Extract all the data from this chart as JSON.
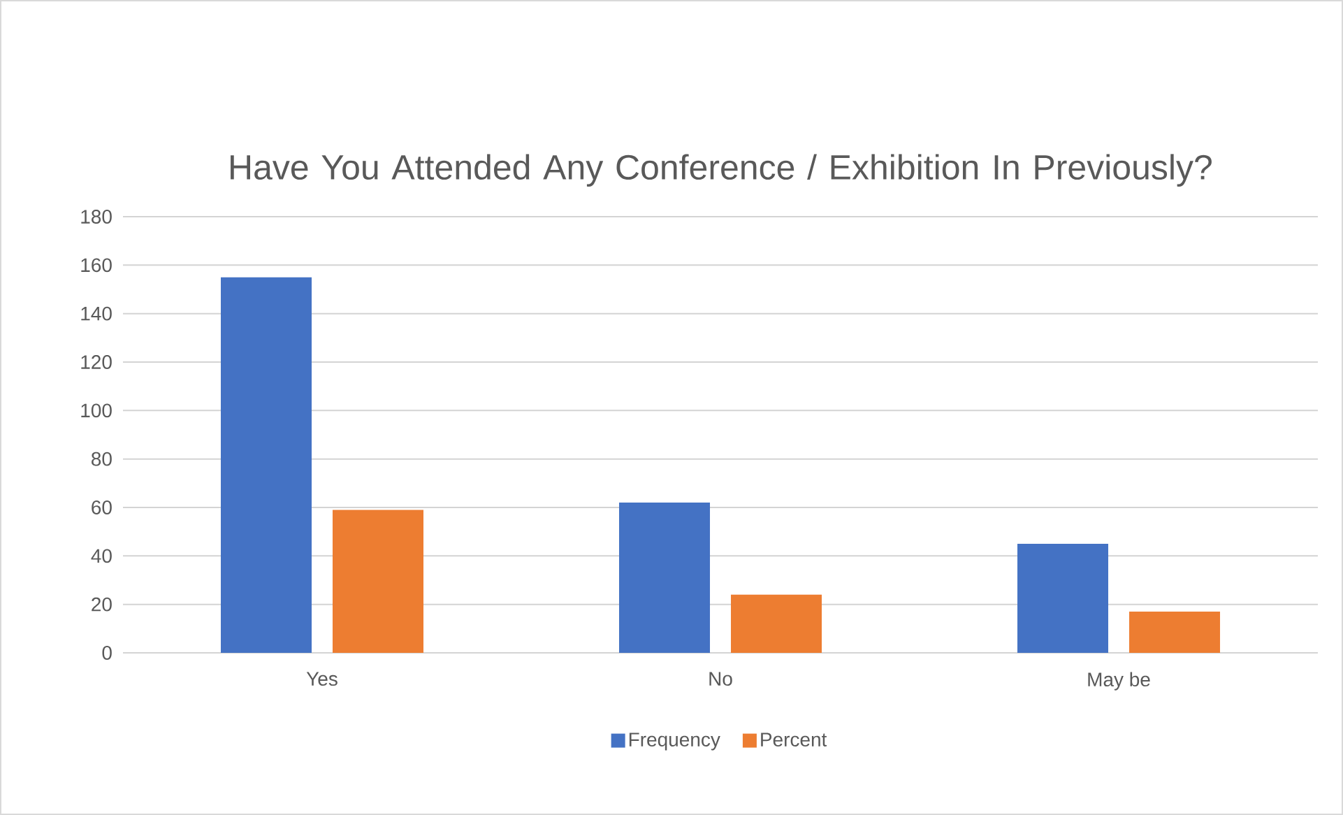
{
  "chart_data": {
    "type": "bar",
    "title": "Have You Attended Any Conference / Exhibition In Previously?",
    "categories": [
      "Yes",
      "No",
      "May be"
    ],
    "series": [
      {
        "name": "Frequency",
        "color": "#4472c4",
        "values": [
          155,
          62,
          45
        ]
      },
      {
        "name": "Percent",
        "color": "#ed7d31",
        "values": [
          59,
          24,
          17
        ]
      }
    ],
    "ylim": [
      0,
      180
    ],
    "yticks": [
      0,
      20,
      40,
      60,
      80,
      100,
      120,
      140,
      160,
      180
    ],
    "grid": "y",
    "legend": "bottom"
  }
}
